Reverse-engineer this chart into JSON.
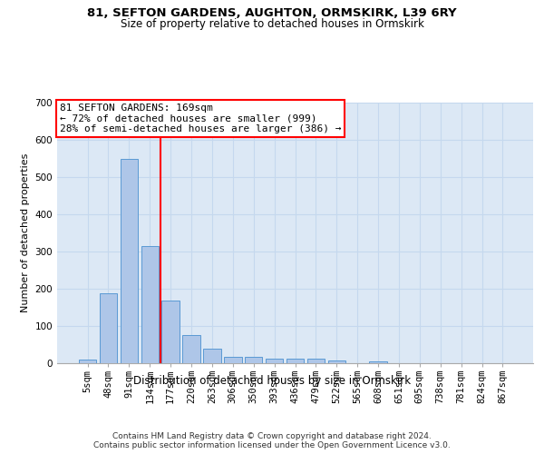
{
  "title1": "81, SEFTON GARDENS, AUGHTON, ORMSKIRK, L39 6RY",
  "title2": "Size of property relative to detached houses in Ormskirk",
  "xlabel": "Distribution of detached houses by size in Ormskirk",
  "ylabel": "Number of detached properties",
  "footer": "Contains HM Land Registry data © Crown copyright and database right 2024.\nContains public sector information licensed under the Open Government Licence v3.0.",
  "categories": [
    "5sqm",
    "48sqm",
    "91sqm",
    "134sqm",
    "177sqm",
    "220sqm",
    "263sqm",
    "306sqm",
    "350sqm",
    "393sqm",
    "436sqm",
    "479sqm",
    "522sqm",
    "565sqm",
    "608sqm",
    "651sqm",
    "695sqm",
    "738sqm",
    "781sqm",
    "824sqm",
    "867sqm"
  ],
  "values": [
    9,
    188,
    547,
    315,
    168,
    75,
    39,
    18,
    18,
    12,
    13,
    13,
    7,
    0,
    5,
    0,
    0,
    0,
    0,
    0,
    0
  ],
  "bar_color": "#aec6e8",
  "bar_edge_color": "#5a9ad4",
  "vline_pos": 3.5,
  "vline_color": "red",
  "annotation_line1": "81 SEFTON GARDENS: 169sqm",
  "annotation_line2": "← 72% of detached houses are smaller (999)",
  "annotation_line3": "28% of semi-detached houses are larger (386) →",
  "annotation_box_facecolor": "white",
  "annotation_box_edgecolor": "red",
  "ylim_max": 700,
  "yticks": [
    0,
    100,
    200,
    300,
    400,
    500,
    600,
    700
  ],
  "bg_color": "#dce8f5",
  "grid_color": "#c5d8ee",
  "title1_fontsize": 9.5,
  "title2_fontsize": 8.5,
  "xlabel_fontsize": 8.5,
  "ylabel_fontsize": 8.0,
  "tick_fontsize": 7.5,
  "annotation_fontsize": 8.0,
  "footer_fontsize": 6.5
}
